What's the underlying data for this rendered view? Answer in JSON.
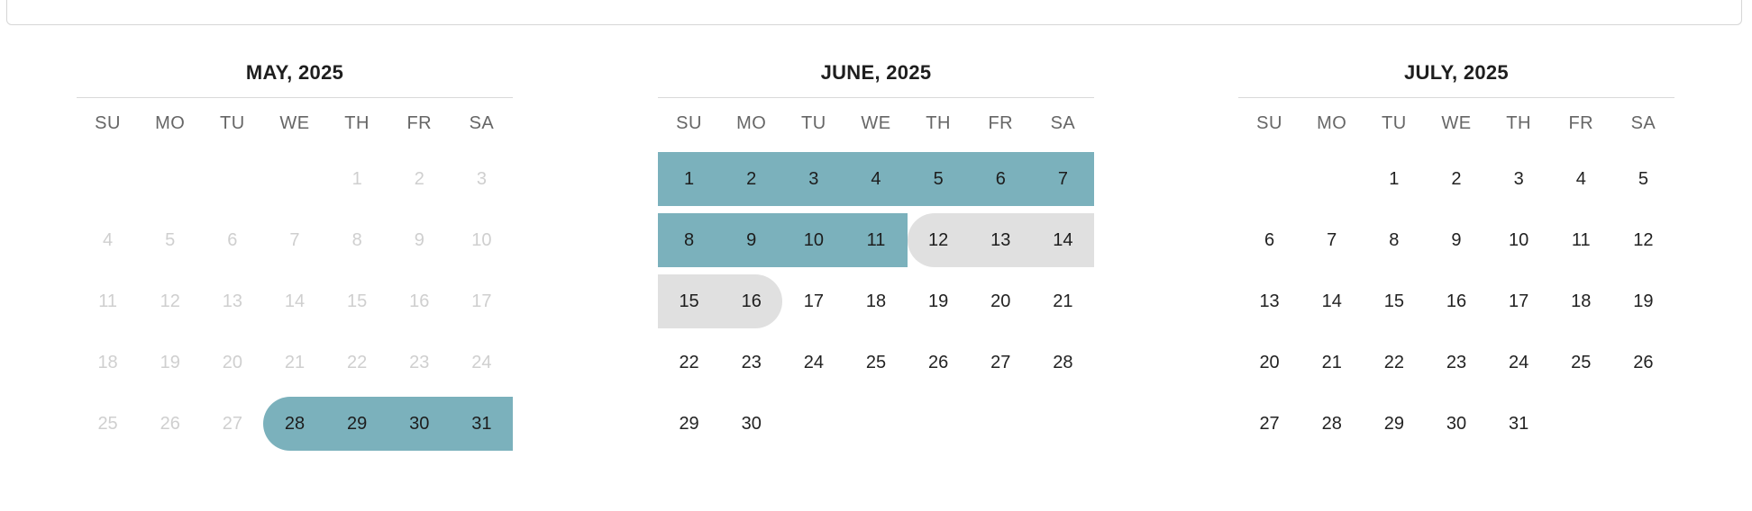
{
  "weekday_labels": [
    "SU",
    "MO",
    "TU",
    "WE",
    "TH",
    "FR",
    "SA"
  ],
  "colors": {
    "selected_range": "#7bb1bc",
    "unavailable_range": "#e0e0e0",
    "past_text": "#cfcfcf"
  },
  "months": [
    {
      "title": "MAY, 2025",
      "weeks": [
        [
          null,
          null,
          null,
          null,
          {
            "d": "1",
            "s": "past"
          },
          {
            "d": "2",
            "s": "past"
          },
          {
            "d": "3",
            "s": "past"
          }
        ],
        [
          {
            "d": "4",
            "s": "past"
          },
          {
            "d": "5",
            "s": "past"
          },
          {
            "d": "6",
            "s": "past"
          },
          {
            "d": "7",
            "s": "past"
          },
          {
            "d": "8",
            "s": "past"
          },
          {
            "d": "9",
            "s": "past"
          },
          {
            "d": "10",
            "s": "past"
          }
        ],
        [
          {
            "d": "11",
            "s": "past"
          },
          {
            "d": "12",
            "s": "past"
          },
          {
            "d": "13",
            "s": "past"
          },
          {
            "d": "14",
            "s": "past"
          },
          {
            "d": "15",
            "s": "past"
          },
          {
            "d": "16",
            "s": "past"
          },
          {
            "d": "17",
            "s": "past"
          }
        ],
        [
          {
            "d": "18",
            "s": "past"
          },
          {
            "d": "19",
            "s": "past"
          },
          {
            "d": "20",
            "s": "past"
          },
          {
            "d": "21",
            "s": "past"
          },
          {
            "d": "22",
            "s": "past"
          },
          {
            "d": "23",
            "s": "past"
          },
          {
            "d": "24",
            "s": "past"
          }
        ],
        [
          {
            "d": "25",
            "s": "past"
          },
          {
            "d": "26",
            "s": "past"
          },
          {
            "d": "27",
            "s": "past"
          },
          {
            "d": "28",
            "s": "sel",
            "cap": "start"
          },
          {
            "d": "29",
            "s": "sel"
          },
          {
            "d": "30",
            "s": "sel"
          },
          {
            "d": "31",
            "s": "sel"
          }
        ]
      ]
    },
    {
      "title": "JUNE, 2025",
      "weeks": [
        [
          {
            "d": "1",
            "s": "sel"
          },
          {
            "d": "2",
            "s": "sel"
          },
          {
            "d": "3",
            "s": "sel"
          },
          {
            "d": "4",
            "s": "sel"
          },
          {
            "d": "5",
            "s": "sel"
          },
          {
            "d": "6",
            "s": "sel"
          },
          {
            "d": "7",
            "s": "sel"
          }
        ],
        [
          {
            "d": "8",
            "s": "sel"
          },
          {
            "d": "9",
            "s": "sel"
          },
          {
            "d": "10",
            "s": "sel"
          },
          {
            "d": "11",
            "s": "sel"
          },
          {
            "d": "12",
            "s": "hold",
            "cap": "start"
          },
          {
            "d": "13",
            "s": "hold"
          },
          {
            "d": "14",
            "s": "hold"
          }
        ],
        [
          {
            "d": "15",
            "s": "hold"
          },
          {
            "d": "16",
            "s": "hold",
            "cap": "end"
          },
          {
            "d": "17"
          },
          {
            "d": "18"
          },
          {
            "d": "19"
          },
          {
            "d": "20"
          },
          {
            "d": "21"
          }
        ],
        [
          {
            "d": "22"
          },
          {
            "d": "23"
          },
          {
            "d": "24"
          },
          {
            "d": "25"
          },
          {
            "d": "26"
          },
          {
            "d": "27"
          },
          {
            "d": "28"
          }
        ],
        [
          {
            "d": "29"
          },
          {
            "d": "30"
          },
          null,
          null,
          null,
          null,
          null
        ]
      ]
    },
    {
      "title": "JULY, 2025",
      "weeks": [
        [
          null,
          null,
          {
            "d": "1"
          },
          {
            "d": "2"
          },
          {
            "d": "3"
          },
          {
            "d": "4"
          },
          {
            "d": "5"
          }
        ],
        [
          {
            "d": "6"
          },
          {
            "d": "7"
          },
          {
            "d": "8"
          },
          {
            "d": "9"
          },
          {
            "d": "10"
          },
          {
            "d": "11"
          },
          {
            "d": "12"
          }
        ],
        [
          {
            "d": "13"
          },
          {
            "d": "14"
          },
          {
            "d": "15"
          },
          {
            "d": "16"
          },
          {
            "d": "17"
          },
          {
            "d": "18"
          },
          {
            "d": "19"
          }
        ],
        [
          {
            "d": "20"
          },
          {
            "d": "21"
          },
          {
            "d": "22"
          },
          {
            "d": "23"
          },
          {
            "d": "24"
          },
          {
            "d": "25"
          },
          {
            "d": "26"
          }
        ],
        [
          {
            "d": "27"
          },
          {
            "d": "28"
          },
          {
            "d": "29"
          },
          {
            "d": "30"
          },
          {
            "d": "31"
          },
          null,
          null
        ]
      ]
    }
  ]
}
